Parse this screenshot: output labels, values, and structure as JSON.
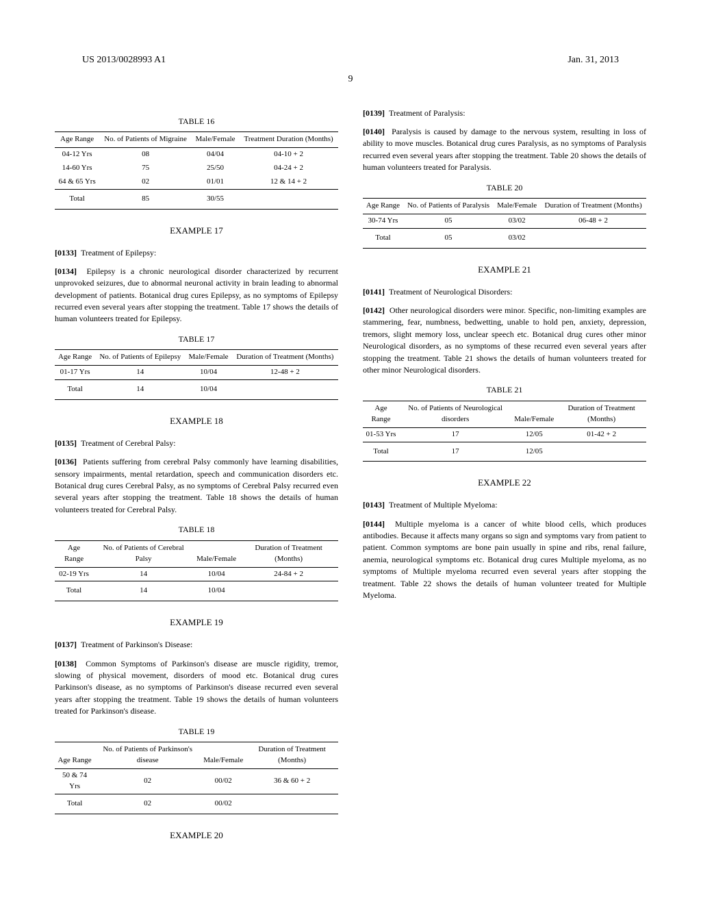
{
  "header": {
    "pub_number": "US 2013/0028993 A1",
    "pub_date": "Jan. 31, 2013",
    "page": "9"
  },
  "table16": {
    "caption": "TABLE 16",
    "cols": [
      "Age Range",
      "No. of Patients of Migraine",
      "Male/Female",
      "Treatment Duration (Months)"
    ],
    "rows": [
      [
        "04-12 Yrs",
        "08",
        "04/04",
        "04-10 + 2"
      ],
      [
        "14-60 Yrs",
        "75",
        "25/50",
        "04-24 + 2"
      ],
      [
        "64 & 65 Yrs",
        "02",
        "01/01",
        "12 & 14 + 2"
      ]
    ],
    "total": [
      "Total",
      "85",
      "30/55",
      ""
    ]
  },
  "example17": {
    "heading": "EXAMPLE 17",
    "p0133_num": "[0133]",
    "p0133": "Treatment of Epilepsy:",
    "p0134_num": "[0134]",
    "p0134": "Epilepsy is a chronic neurological disorder characterized by recurrent unprovoked seizures, due to abnormal neuronal activity in brain leading to abnormal development of patients. Botanical drug cures Epilepsy, as no symptoms of Epilepsy recurred even several years after stopping the treatment. Table 17 shows the details of human volunteers treated for Epilepsy."
  },
  "table17": {
    "caption": "TABLE 17",
    "cols": [
      "Age Range",
      "No. of Patients of Epilepsy",
      "Male/Female",
      "Duration of Treatment (Months)"
    ],
    "rows": [
      [
        "01-17 Yrs",
        "14",
        "10/04",
        "12-48 + 2"
      ]
    ],
    "total": [
      "Total",
      "14",
      "10/04",
      ""
    ]
  },
  "example18": {
    "heading": "EXAMPLE 18",
    "p0135_num": "[0135]",
    "p0135": "Treatment of Cerebral Palsy:",
    "p0136_num": "[0136]",
    "p0136": "Patients suffering from cerebral Palsy commonly have learning disabilities, sensory impairments, mental retardation, speech and communication disorders etc. Botanical drug cures Cerebral Palsy, as no symptoms of Cerebral Palsy recurred even several years after stopping the treatment. Table 18 shows the details of human volunteers treated for Cerebral Palsy."
  },
  "table18": {
    "caption": "TABLE 18",
    "cols": [
      "Age Range",
      "No. of Patients of Cerebral Palsy",
      "Male/Female",
      "Duration of Treatment (Months)"
    ],
    "rows": [
      [
        "02-19 Yrs",
        "14",
        "10/04",
        "24-84 + 2"
      ]
    ],
    "total": [
      "Total",
      "14",
      "10/04",
      ""
    ]
  },
  "example19": {
    "heading": "EXAMPLE 19",
    "p0137_num": "[0137]",
    "p0137": "Treatment of Parkinson's Disease:",
    "p0138_num": "[0138]",
    "p0138": "Common Symptoms of Parkinson's disease are muscle rigidity, tremor, slowing of physical movement, disorders of mood etc. Botanical drug cures Parkinson's disease, as no symptoms of Parkinson's disease recurred even several years after stopping the treatment. Table 19 shows the details of human volunteers treated for Parkinson's disease."
  },
  "table19": {
    "caption": "TABLE 19",
    "cols": [
      "Age Range",
      "No. of Patients of Parkinson's disease",
      "Male/Female",
      "Duration of Treatment (Months)"
    ],
    "rows": [
      [
        "50 & 74 Yrs",
        "02",
        "00/02",
        "36 & 60 + 2"
      ]
    ],
    "total": [
      "Total",
      "02",
      "00/02",
      ""
    ]
  },
  "example20": {
    "heading": "EXAMPLE 20",
    "p0139_num": "[0139]",
    "p0139": "Treatment of Paralysis:",
    "p0140_num": "[0140]",
    "p0140": "Paralysis is caused by damage to the nervous system, resulting in loss of ability to move muscles. Botanical drug cures Paralysis, as no symptoms of Paralysis recurred even several years after stopping the treatment. Table 20 shows the details of human volunteers treated for Paralysis."
  },
  "table20": {
    "caption": "TABLE 20",
    "cols": [
      "Age Range",
      "No. of Patients of Paralysis",
      "Male/Female",
      "Duration of Treatment (Months)"
    ],
    "rows": [
      [
        "30-74 Yrs",
        "05",
        "03/02",
        "06-48 + 2"
      ]
    ],
    "total": [
      "Total",
      "05",
      "03/02",
      ""
    ]
  },
  "example21": {
    "heading": "EXAMPLE 21",
    "p0141_num": "[0141]",
    "p0141": "Treatment of Neurological Disorders:",
    "p0142_num": "[0142]",
    "p0142": "Other neurological disorders were minor. Specific, non-limiting examples are stammering, fear, numbness, bedwetting, unable to hold pen, anxiety, depression, tremors, slight memory loss, unclear speech etc. Botanical drug cures other minor Neurological disorders, as no symptoms of these recurred even several years after stopping the treatment. Table 21 shows the details of human volunteers treated for other minor Neurological disorders."
  },
  "table21": {
    "caption": "TABLE 21",
    "cols": [
      "Age Range",
      "No. of Patients of Neurological disorders",
      "Male/Female",
      "Duration of Treatment (Months)"
    ],
    "rows": [
      [
        "01-53 Yrs",
        "17",
        "12/05",
        "01-42 + 2"
      ]
    ],
    "total": [
      "Total",
      "17",
      "12/05",
      ""
    ]
  },
  "example22": {
    "heading": "EXAMPLE 22",
    "p0143_num": "[0143]",
    "p0143": "Treatment of Multiple Myeloma:",
    "p0144_num": "[0144]",
    "p0144": "Multiple myeloma is a cancer of white blood cells, which produces antibodies. Because it affects many organs so sign and symptoms vary from patient to patient. Common symptoms are bone pain usually in spine and ribs, renal failure, anemia, neurological symptoms etc. Botanical drug cures Multiple myeloma, as no symptoms of Multiple myeloma recurred even several years after stopping the treatment. Table 22 shows the details of human volunteer treated for Multiple Myeloma."
  }
}
